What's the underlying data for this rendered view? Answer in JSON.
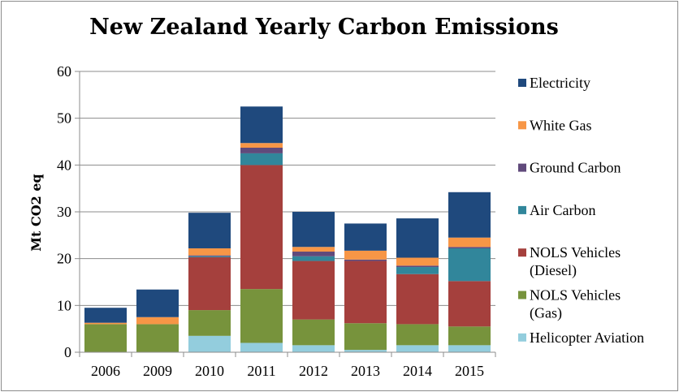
{
  "chart_data": {
    "type": "bar",
    "stacked": true,
    "title": "New Zealand Yearly Carbon Emissions",
    "xlabel": "",
    "ylabel": "Mt CO2 eq",
    "ylim": [
      0,
      60
    ],
    "yticks": [
      "0",
      "10",
      "20",
      "30",
      "40",
      "50",
      "60"
    ],
    "categories": [
      "2006",
      "2009",
      "2010",
      "2011",
      "2012",
      "2013",
      "2014",
      "2015"
    ],
    "series": [
      {
        "name": "Helicopter Aviation",
        "label_lines": [
          "Helicopter Aviation"
        ],
        "color": "#93cddd",
        "values": [
          0,
          0,
          3.5,
          2,
          1.5,
          0.5,
          1.5,
          1.5
        ]
      },
      {
        "name": "NOLS Vehicles (Gas)",
        "label_lines": [
          "NOLS Vehicles",
          "(Gas)"
        ],
        "color": "#77933c",
        "values": [
          6,
          6,
          5.5,
          11.5,
          5.5,
          5.7,
          4.5,
          4
        ]
      },
      {
        "name": "NOLS Vehicles (Diesel)",
        "label_lines": [
          "NOLS Vehicles",
          "(Diesel)"
        ],
        "color": "#a5403d",
        "values": [
          0,
          0,
          11.3,
          26.5,
          12.5,
          13.3,
          10.7,
          9.7
        ]
      },
      {
        "name": "Air Carbon",
        "label_lines": [
          "Air Carbon"
        ],
        "color": "#31869b",
        "values": [
          0,
          0,
          0.2,
          2.5,
          1,
          0,
          1.5,
          7
        ]
      },
      {
        "name": "Ground Carbon",
        "label_lines": [
          "Ground Carbon"
        ],
        "color": "#604a7b",
        "values": [
          0,
          0,
          0.2,
          1.2,
          1,
          0.3,
          0.3,
          0.3
        ]
      },
      {
        "name": "White Gas",
        "label_lines": [
          "White Gas"
        ],
        "color": "#f79646",
        "values": [
          0.3,
          1.5,
          1.5,
          1,
          1,
          1.9,
          1.7,
          2
        ]
      },
      {
        "name": "Electricity",
        "label_lines": [
          "Electricity"
        ],
        "color": "#1f497d",
        "values": [
          3.2,
          5.9,
          7.6,
          7.8,
          7.5,
          5.8,
          8.4,
          9.7
        ]
      }
    ],
    "legend_position": "right",
    "grid": true
  }
}
